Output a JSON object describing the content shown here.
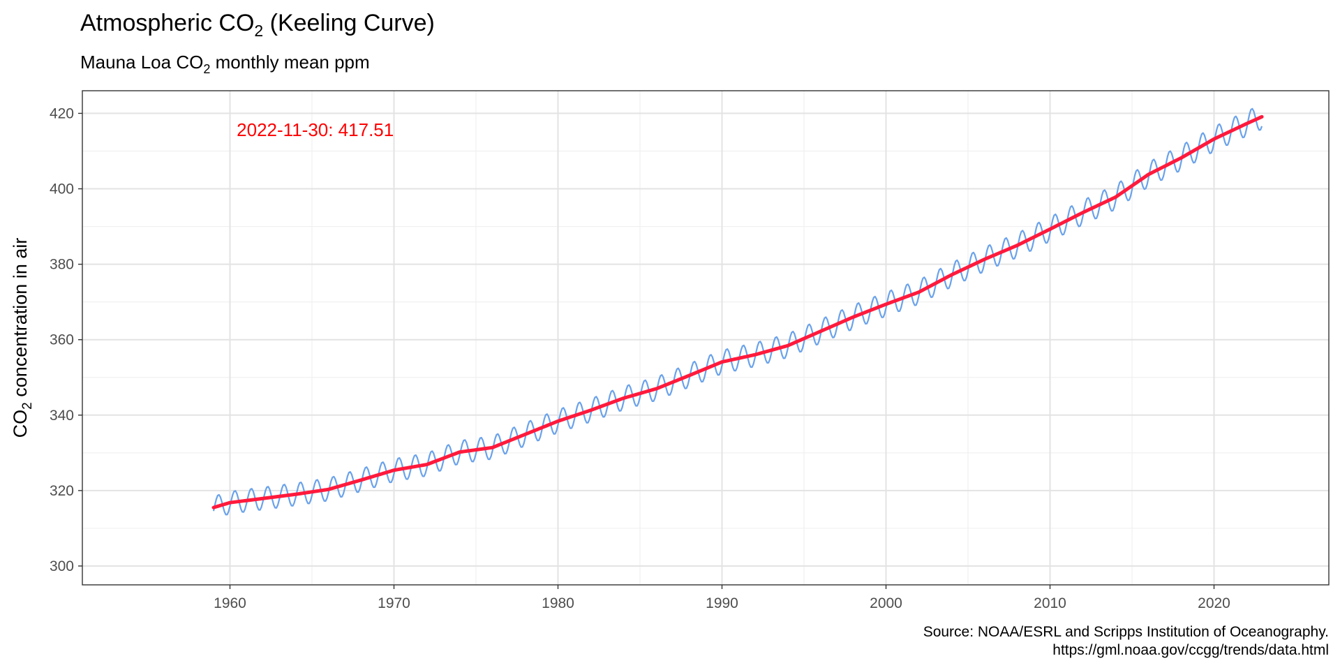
{
  "chart_data": {
    "type": "line",
    "title_main": "Atmospheric CO",
    "title_sub": "2",
    "title_tail": " (Keeling Curve)",
    "subtitle_main": "Mauna Loa CO",
    "subtitle_sub": "2",
    "subtitle_tail": " monthly mean ppm",
    "ylabel_main": "CO",
    "ylabel_sub": "2",
    "ylabel_tail": " concentration in air",
    "xlabel": "",
    "xlim": [
      1951,
      2027
    ],
    "ylim": [
      295,
      426
    ],
    "x_ticks": [
      1960,
      1970,
      1980,
      1990,
      2000,
      2010,
      2020
    ],
    "y_ticks": [
      300,
      320,
      340,
      360,
      380,
      400,
      420
    ],
    "grid": true,
    "annotation": {
      "text": "2022-11-30: 417.51",
      "x": 1965.2,
      "y": 414
    },
    "caption_line1": "Source: NOAA/ESRL and Scripps Institution of Oceanography.",
    "caption_line2": "https://gml.noaa.gov/ccgg/trends/data.html",
    "series": [
      {
        "kind": "monthly",
        "color": "#6aa2ea",
        "start": 1959.0,
        "end": 2022.92,
        "seasonal_amplitude_ppm": 3.0
      },
      {
        "kind": "trend",
        "color": "#ff1a3c",
        "x": [
          1959,
          1960,
          1962,
          1964,
          1966,
          1968,
          1970,
          1972,
          1974,
          1976,
          1978,
          1980,
          1982,
          1984,
          1986,
          1988,
          1990,
          1992,
          1994,
          1996,
          1998,
          2000,
          2002,
          2004,
          2006,
          2008,
          2010,
          2012,
          2014,
          2016,
          2018,
          2020,
          2022,
          2022.92
        ],
        "y": [
          315.5,
          316.8,
          317.9,
          319.0,
          320.3,
          322.8,
          325.4,
          326.9,
          330.2,
          331.4,
          334.9,
          338.4,
          341.3,
          344.5,
          347.0,
          350.5,
          354.1,
          356.0,
          358.4,
          362.2,
          366.0,
          369.4,
          372.6,
          377.2,
          381.3,
          385.0,
          389.3,
          393.7,
          397.8,
          403.8,
          408.2,
          413.2,
          417.3,
          419.1
        ]
      }
    ]
  }
}
